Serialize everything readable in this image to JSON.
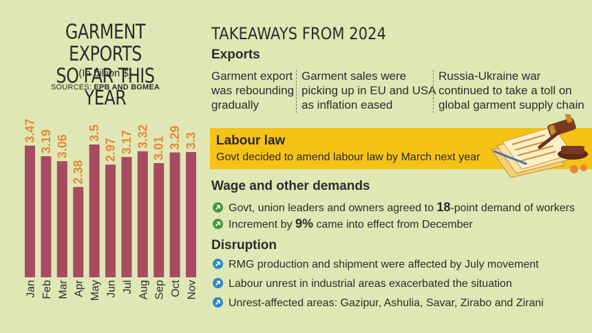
{
  "left": {
    "title_line1": "GARMENT EXPORTS",
    "title_line2": "SO FAR THIS YEAR",
    "unit": "(In billion $)",
    "sources_label": "SOURCES:",
    "sources": "EPB AND BGMEA"
  },
  "colors": {
    "bar": "#a84a61",
    "value_label": "#e8863a",
    "background": "#dfe7b5",
    "highlight": "#f5c318"
  },
  "chart_data": {
    "type": "bar",
    "categories": [
      "Jan",
      "Feb",
      "Mar",
      "Apr",
      "May",
      "Jun",
      "Jul",
      "Aug",
      "Sep",
      "Oct",
      "Nov"
    ],
    "values": [
      3.47,
      3.19,
      3.06,
      2.38,
      3.5,
      2.97,
      3.17,
      3.32,
      3.01,
      3.29,
      3.3
    ],
    "value_labels": [
      "3.47",
      "3.19",
      "3.06",
      "2.38",
      "3.5",
      "2.97",
      "3.17",
      "3.32",
      "3.01",
      "3.29",
      "3.3"
    ],
    "title": "GARMENT EXPORTS SO FAR THIS YEAR",
    "ylabel": "(In billion $)",
    "ylim": [
      0,
      3.5
    ],
    "grid": false,
    "legend": "none"
  },
  "takeaways": {
    "title": "TAKEAWAYS FROM 2024",
    "exports": {
      "heading": "Exports",
      "points": [
        [
          "Garment export",
          "was rebounding",
          "gradually"
        ],
        [
          "Garment sales were",
          "picking up in EU and USA",
          "as inflation eased"
        ],
        [
          "Russia-Ukraine war",
          "continued to take a toll on",
          "global garment supply chain"
        ]
      ]
    },
    "labour": {
      "heading": "Labour law",
      "text": "Govt decided to amend labour law by March next year"
    },
    "wage": {
      "heading": "Wage and other demands",
      "items": [
        {
          "pre": "Govt, union leaders and owners agreed to ",
          "bold": "18",
          "post": "-point demand of workers"
        },
        {
          "pre": "Increment by ",
          "bold": "9%",
          "post": " came into effect from December"
        }
      ]
    },
    "disruption": {
      "heading": "Disruption",
      "items": [
        "RMG production and shipment were affected by July movement",
        "Labour unrest in industrial areas exacerbated the situation",
        "Unrest-affected areas: Gazipur, Ashulia, Savar, Zirabo and Zirani"
      ]
    }
  }
}
